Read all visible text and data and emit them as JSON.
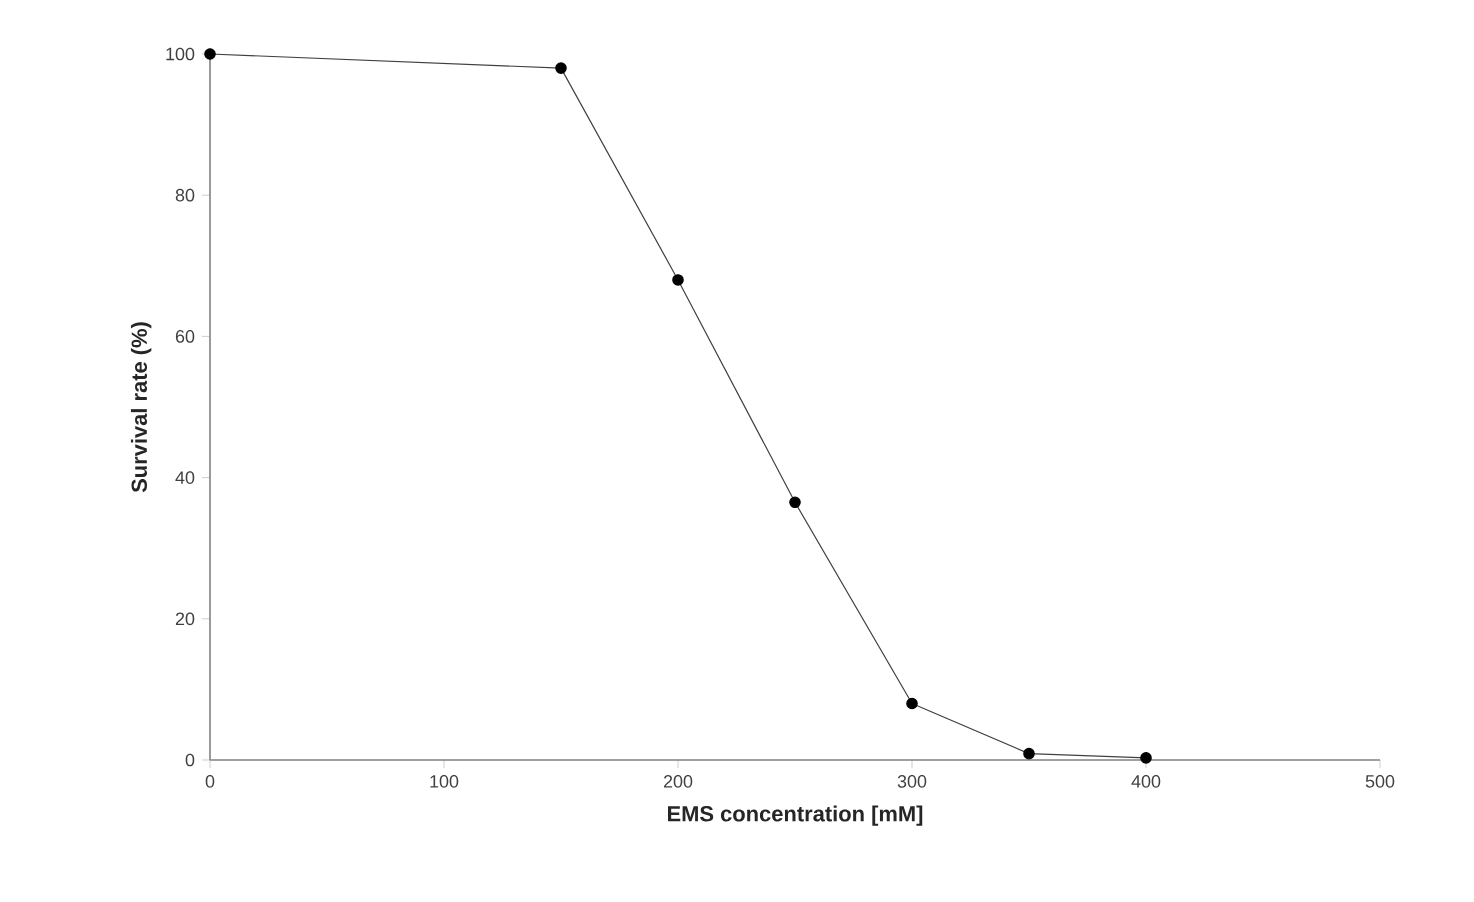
{
  "chart_data": {
    "type": "line",
    "xlabel": "EMS concentration [mM]",
    "ylabel": "Survival rate (%)",
    "x": [
      0,
      150,
      200,
      250,
      300,
      350,
      400
    ],
    "series": [
      {
        "color": "#000000",
        "values": [
          100,
          98,
          68,
          36.5,
          8,
          0.9,
          0.3
        ]
      }
    ],
    "xlim": [
      0,
      500
    ],
    "ylim": [
      0,
      100
    ],
    "xticks": [
      0,
      100,
      200,
      300,
      400,
      500
    ],
    "yticks": [
      0,
      20,
      40,
      60,
      80,
      100
    ],
    "grid": false,
    "marker": "circle",
    "line_style": "solid"
  }
}
